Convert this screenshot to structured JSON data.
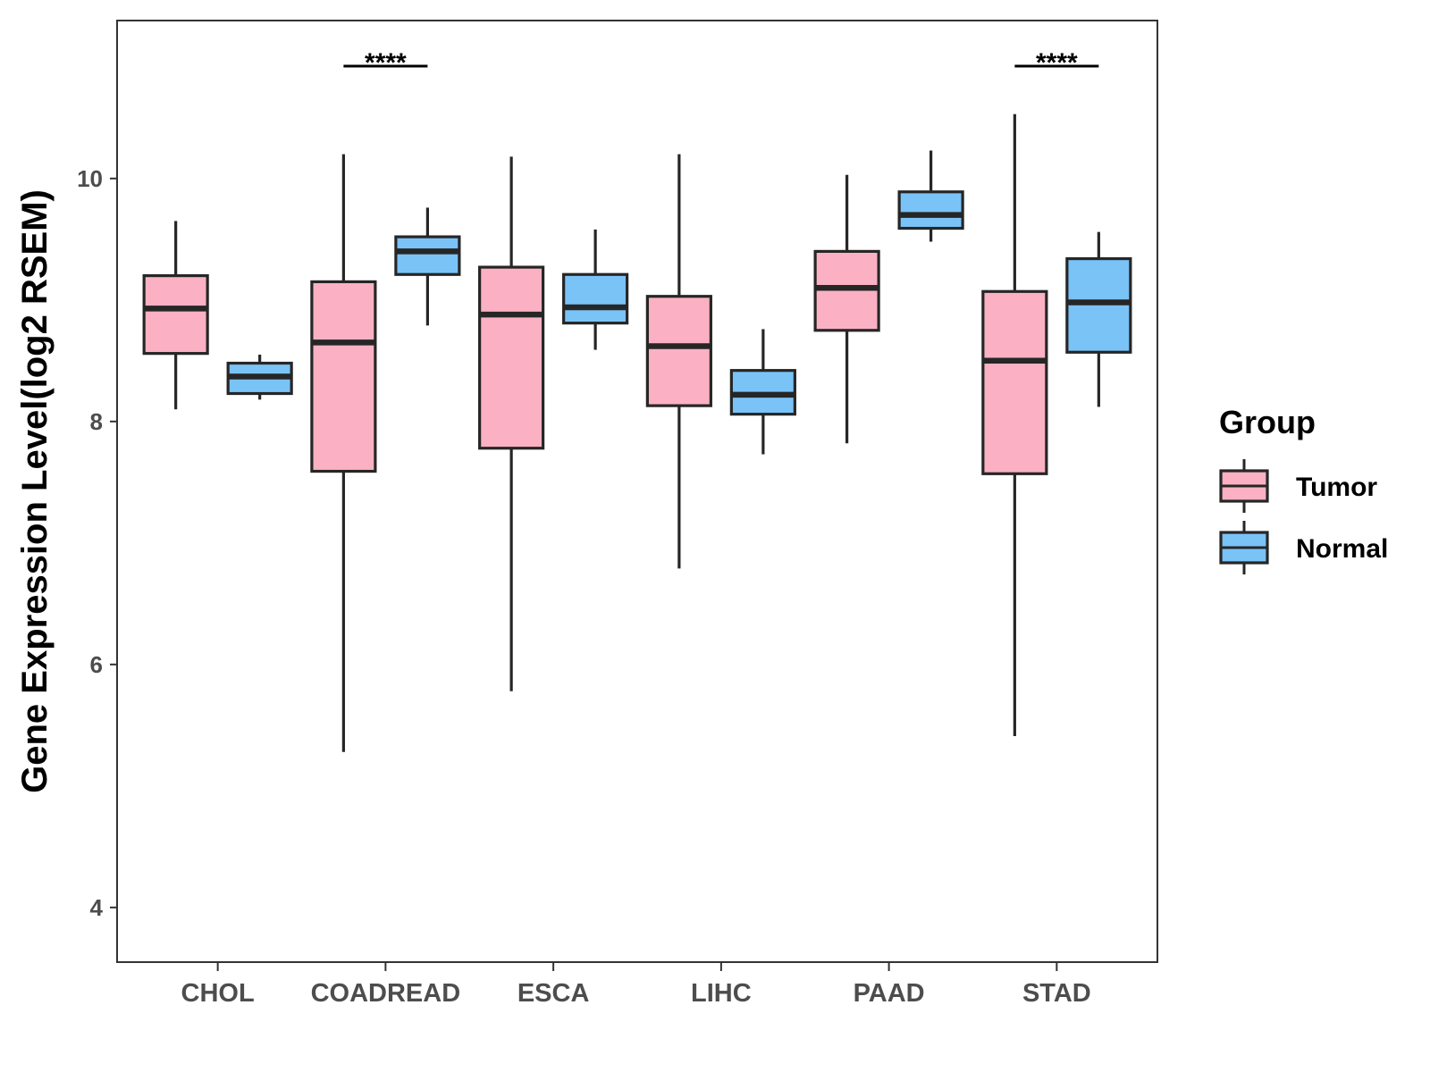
{
  "chart_data": {
    "type": "boxplot",
    "title": "",
    "xlabel": "",
    "ylabel": "Gene Expression Level(log2 RSEM)",
    "ylim": [
      3.55,
      11.3
    ],
    "yticks": [
      4,
      6,
      8,
      10
    ],
    "categories": [
      "CHOL",
      "COADREAD",
      "ESCA",
      "LIHC",
      "PAAD",
      "STAD"
    ],
    "legend": {
      "title": "Group",
      "position": "right",
      "entries": [
        {
          "name": "Tumor",
          "color": "#fbb1c3"
        },
        {
          "name": "Normal",
          "color": "#7ac3f7"
        }
      ]
    },
    "series": [
      {
        "name": "Tumor",
        "color": "#fbb1c3",
        "boxes": [
          {
            "min": 8.1,
            "q1": 8.56,
            "median": 8.93,
            "q3": 9.2,
            "max": 9.65
          },
          {
            "min": 5.28,
            "q1": 7.59,
            "median": 8.65,
            "q3": 9.15,
            "max": 10.2
          },
          {
            "min": 5.78,
            "q1": 7.78,
            "median": 8.88,
            "q3": 9.27,
            "max": 10.18
          },
          {
            "min": 6.79,
            "q1": 8.13,
            "median": 8.62,
            "q3": 9.03,
            "max": 10.2
          },
          {
            "min": 7.82,
            "q1": 8.75,
            "median": 9.1,
            "q3": 9.4,
            "max": 10.03
          },
          {
            "min": 5.41,
            "q1": 7.57,
            "median": 8.5,
            "q3": 9.07,
            "max": 10.53
          }
        ]
      },
      {
        "name": "Normal",
        "color": "#7ac3f7",
        "boxes": [
          {
            "min": 8.18,
            "q1": 8.23,
            "median": 8.37,
            "q3": 8.48,
            "max": 8.55
          },
          {
            "min": 8.79,
            "q1": 9.21,
            "median": 9.4,
            "q3": 9.52,
            "max": 9.76
          },
          {
            "min": 8.59,
            "q1": 8.81,
            "median": 8.94,
            "q3": 9.21,
            "max": 9.58
          },
          {
            "min": 7.73,
            "q1": 8.06,
            "median": 8.22,
            "q3": 8.42,
            "max": 8.76
          },
          {
            "min": 9.48,
            "q1": 9.59,
            "median": 9.7,
            "q3": 9.89,
            "max": 10.23
          },
          {
            "min": 8.12,
            "q1": 8.57,
            "median": 8.98,
            "q3": 9.34,
            "max": 9.56
          }
        ]
      }
    ],
    "annotations": [
      {
        "category": "COADREAD",
        "label": "****"
      },
      {
        "category": "STAD",
        "label": "****"
      }
    ]
  }
}
